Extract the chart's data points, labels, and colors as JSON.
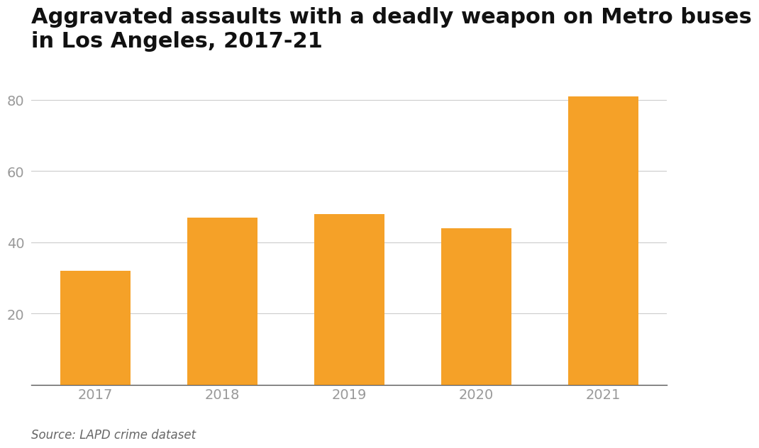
{
  "title": "Aggravated assaults with a deadly weapon on Metro buses\nin Los Angeles, 2017-21",
  "categories": [
    "2017",
    "2018",
    "2019",
    "2020",
    "2021"
  ],
  "values": [
    32,
    47,
    48,
    44,
    81
  ],
  "bar_color": "#F5A128",
  "background_color": "#FFFFFF",
  "ylim": [
    0,
    90
  ],
  "yticks": [
    20,
    40,
    60,
    80
  ],
  "title_fontsize": 22,
  "tick_fontsize": 14,
  "source_text": "Source: LAPD crime dataset",
  "source_fontsize": 12,
  "grid_color": "#CCCCCC",
  "tick_color": "#999999",
  "spine_color": "#555555"
}
